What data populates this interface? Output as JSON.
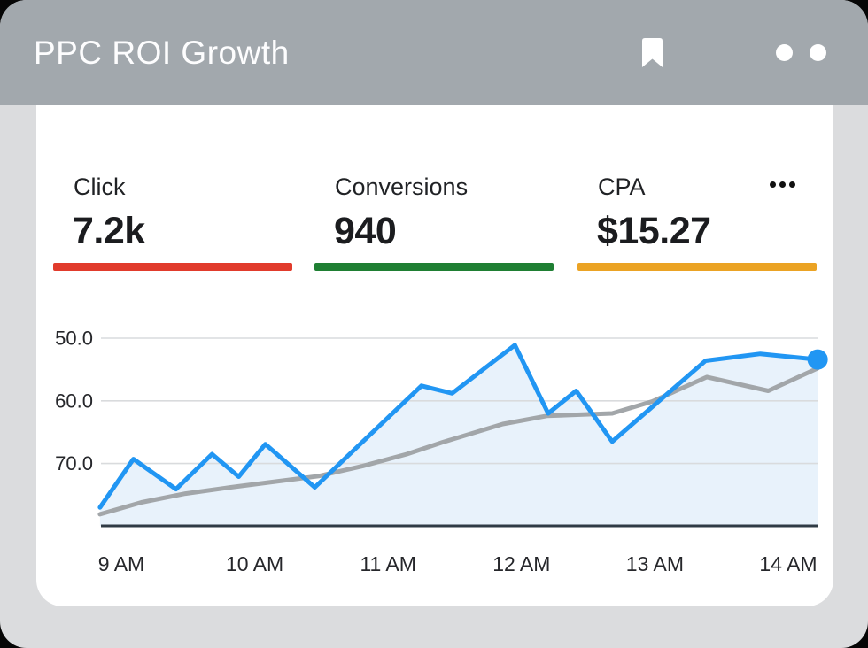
{
  "header": {
    "title": "PPC ROI Growth",
    "icons": [
      "bookmark-icon",
      "grid-apps-icon",
      "two-dots-menu-icon"
    ],
    "background": "#A2A8AD"
  },
  "kpis": [
    {
      "label": "Click",
      "value": "7.2k",
      "bar_color": "#E13B2C"
    },
    {
      "label": "Conversions",
      "value": "940",
      "bar_color": "#1F7F33"
    },
    {
      "label": "CPA",
      "value": "$15.27",
      "bar_color": "#EBA324"
    }
  ],
  "kpi_menu_icon": "ellipsis-icon",
  "chart_data": {
    "type": "line",
    "title": "",
    "xlabel": "",
    "ylabel": "",
    "grid": true,
    "legend": "none",
    "y_axis": {
      "ticks": [
        50.0,
        60.0,
        70.0
      ],
      "tick_labels": [
        "50.0",
        "60.0",
        "70.0"
      ],
      "inverted": true
    },
    "x_ticks": [
      {
        "t": 9,
        "label": "9 AM"
      },
      {
        "t": 10,
        "label": "10 AM"
      },
      {
        "t": 11,
        "label": "11 AM"
      },
      {
        "t": 12,
        "label": "12 AM"
      },
      {
        "t": 13,
        "label": "13 AM"
      },
      {
        "t": 14,
        "label": "14 AM"
      }
    ],
    "series": [
      {
        "name": "cpa-current",
        "color": "#2196F3",
        "area_fill": "#E8F2FB",
        "end_dot": true,
        "points": [
          [
            8.84,
            77.0
          ],
          [
            9.09,
            69.3
          ],
          [
            9.41,
            74.1
          ],
          [
            9.68,
            68.5
          ],
          [
            9.88,
            72.1
          ],
          [
            10.08,
            66.9
          ],
          [
            10.45,
            73.8
          ],
          [
            11.25,
            57.6
          ],
          [
            11.48,
            58.8
          ],
          [
            11.95,
            51.1
          ],
          [
            12.2,
            62.0
          ],
          [
            12.41,
            58.4
          ],
          [
            12.68,
            66.5
          ],
          [
            13.38,
            53.6
          ],
          [
            13.79,
            52.5
          ],
          [
            14.22,
            53.4
          ]
        ]
      },
      {
        "name": "cpa-benchmark",
        "color": "#A2A6A9",
        "points": [
          [
            8.84,
            78.1
          ],
          [
            9.15,
            76.2
          ],
          [
            9.48,
            74.8
          ],
          [
            9.82,
            73.8
          ],
          [
            10.15,
            72.9
          ],
          [
            10.48,
            72.0
          ],
          [
            10.81,
            70.4
          ],
          [
            11.14,
            68.5
          ],
          [
            11.41,
            66.6
          ],
          [
            11.86,
            63.7
          ],
          [
            12.19,
            62.4
          ],
          [
            12.68,
            62.0
          ],
          [
            12.98,
            60.1
          ],
          [
            13.39,
            56.2
          ],
          [
            13.85,
            58.4
          ],
          [
            14.22,
            54.8
          ]
        ]
      }
    ],
    "colors": {
      "gridline": "#D9DBDD",
      "baseline": "#2F3B45",
      "tick_text": "#26272B"
    }
  }
}
